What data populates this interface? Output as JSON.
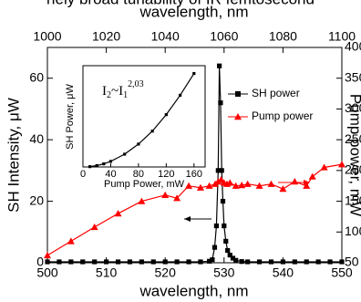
{
  "caption_fragment": "nely broad tunability of IR femtosecond",
  "chart_data": [
    {
      "type": "line",
      "xlabel": "wavelength, nm",
      "x2label": "wavelength, nm",
      "ylabel": "SH Intensity, μW",
      "y2label": "Pump power, mW",
      "xlim": [
        500,
        550
      ],
      "xticks": [
        500,
        510,
        520,
        530,
        540,
        550
      ],
      "x2lim": [
        1000,
        1100
      ],
      "x2ticks": [
        1000,
        1020,
        1040,
        1060,
        1080,
        1100
      ],
      "ylim": [
        0,
        70
      ],
      "yticks": [
        0,
        20,
        40,
        60
      ],
      "y2lim": [
        50,
        400
      ],
      "y2ticks": [
        50,
        100,
        150,
        200,
        250,
        300,
        350,
        400
      ],
      "series": [
        {
          "name": "SH power",
          "color": "#000000",
          "marker": "square",
          "axis": "y",
          "x": [
            500,
            502,
            504,
            506,
            508,
            510,
            512,
            514,
            516,
            518,
            520,
            522,
            524,
            526,
            527.5,
            528,
            528.4,
            528.7,
            529,
            529.2,
            529.4,
            529.6,
            529.8,
            530,
            530.3,
            530.6,
            531,
            531.5,
            532,
            533,
            534,
            536,
            538,
            540,
            542,
            544,
            546,
            548,
            550
          ],
          "values": [
            0.3,
            0.3,
            0.3,
            0.3,
            0.3,
            0.3,
            0.3,
            0.3,
            0.3,
            0.3,
            0.3,
            0.3,
            0.3,
            0.3,
            0.5,
            1,
            5,
            12,
            30,
            64,
            52,
            30,
            20,
            12,
            7,
            4,
            2.5,
            1.5,
            0.8,
            0.4,
            0.3,
            0.3,
            0.3,
            0.3,
            0.3,
            0.3,
            0.3,
            0.3,
            0.3
          ]
        },
        {
          "name": "Pump power",
          "color": "#ff0000",
          "marker": "triangle",
          "axis": "y2",
          "x": [
            500,
            504,
            508,
            512,
            516,
            520,
            522,
            524,
            526,
            527.5,
            528.5,
            529,
            529.5,
            530,
            530.5,
            531,
            532,
            533,
            534,
            536,
            538,
            540,
            542,
            544,
            545,
            547,
            550
          ],
          "values": [
            62,
            85,
            108,
            130,
            150,
            160,
            155,
            175,
            172,
            175,
            178,
            182,
            185,
            180,
            178,
            180,
            175,
            176,
            178,
            175,
            178,
            170,
            182,
            175,
            190,
            205,
            210
          ]
        }
      ]
    },
    {
      "type": "line",
      "xlabel": "Pump Power, mW",
      "ylabel": "SH Power, μW",
      "equation": [
        "I",
        "2",
        "~I",
        "1",
        "2,03"
      ],
      "xlim": [
        0,
        176
      ],
      "xticks": [
        0,
        40,
        80,
        120,
        160
      ],
      "ylim": [
        0,
        65
      ],
      "series": [
        {
          "color": "#000000",
          "marker": "square",
          "x": [
            10,
            20,
            30,
            40,
            60,
            80,
            100,
            120,
            140,
            160
          ],
          "values": [
            0.21,
            0.88,
            2.0,
            3.6,
            8.2,
            14.7,
            23,
            33.6,
            46,
            60
          ]
        }
      ]
    }
  ]
}
